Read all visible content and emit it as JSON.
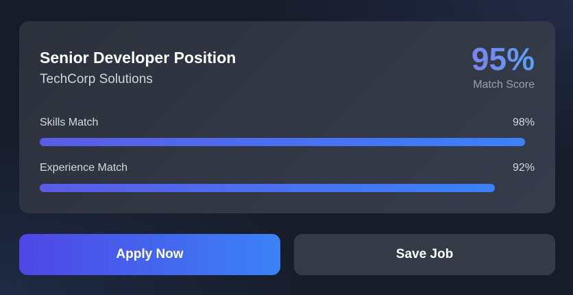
{
  "job": {
    "title": "Senior Developer Position",
    "company": "TechCorp Solutions",
    "score": "95%",
    "score_label": "Match Score"
  },
  "metrics": [
    {
      "label": "Skills Match",
      "value": "98%",
      "percent": 98
    },
    {
      "label": "Experience Match",
      "value": "92%",
      "percent": 92
    }
  ],
  "actions": {
    "apply": "Apply Now",
    "save": "Save Job"
  },
  "colors": {
    "accent_start": "#4f46e5",
    "accent_end": "#3b82f6"
  }
}
